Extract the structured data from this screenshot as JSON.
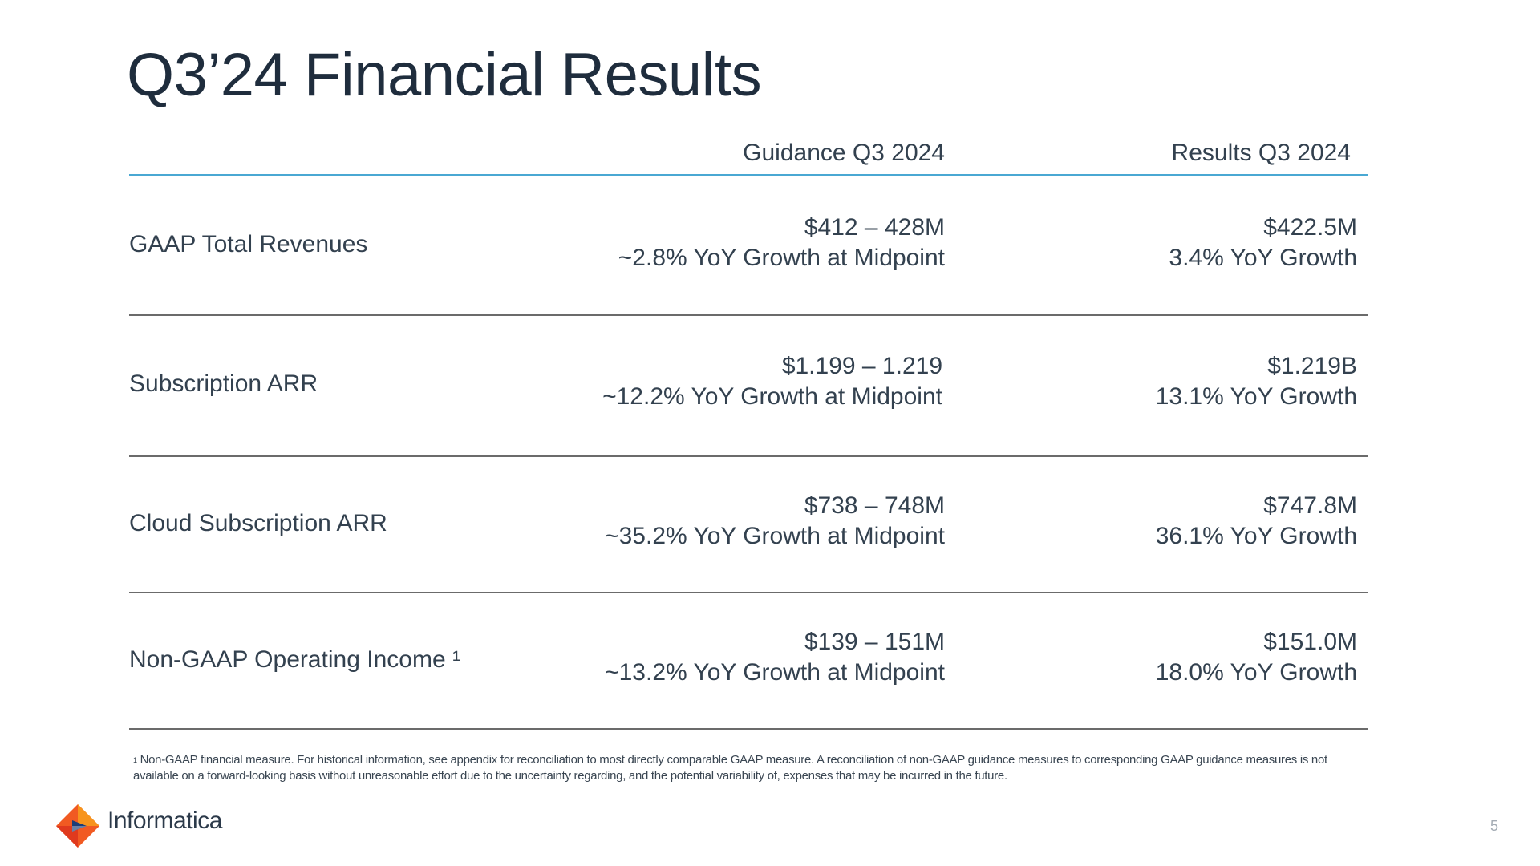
{
  "title": "Q3’24 Financial Results",
  "table": {
    "headers": {
      "guidance": "Guidance Q3 2024",
      "results": "Results Q3 2024"
    },
    "rows": [
      {
        "metric": "GAAP Total Revenues",
        "guidance_value": "$412 – 428M",
        "guidance_growth": "~2.8% YoY Growth at Midpoint",
        "result_value": "$422.5M",
        "result_growth": "3.4% YoY Growth"
      },
      {
        "metric": "Subscription ARR",
        "guidance_value": "$1.199 – 1.219",
        "guidance_growth": "~12.2% YoY Growth at Midpoint",
        "result_value": "$1.219B",
        "result_growth": "13.1% YoY Growth"
      },
      {
        "metric": "Cloud Subscription ARR",
        "guidance_value": "$738 – 748M",
        "guidance_growth": "~35.2% YoY Growth at Midpoint",
        "result_value": "$747.8M",
        "result_growth": "36.1% YoY Growth"
      },
      {
        "metric": "Non-GAAP Operating Income ¹",
        "guidance_value": "$139 – 151M",
        "guidance_growth": "~13.2% YoY Growth at Midpoint",
        "result_value": "$151.0M",
        "result_growth": "18.0% YoY Growth"
      }
    ]
  },
  "footnote": {
    "marker": "1",
    "text": "Non-GAAP financial measure. For historical information, see appendix for reconciliation to most directly comparable GAAP measure. A reconciliation of non-GAAP guidance measures to corresponding GAAP guidance measures is not available on a forward-looking basis without unreasonable effort due to the uncertainty regarding, and the potential variability of, expenses that may be incurred in the future."
  },
  "brand": {
    "name": "Informatica",
    "icon": "informatica-diamond-logo",
    "colors": [
      "#f15a22",
      "#f7941d",
      "#1d3c78"
    ]
  },
  "page_number": "5",
  "colors": {
    "header_rule": "#4aa8d3",
    "row_rule": "#6b6b6b",
    "text": "#33414f"
  }
}
